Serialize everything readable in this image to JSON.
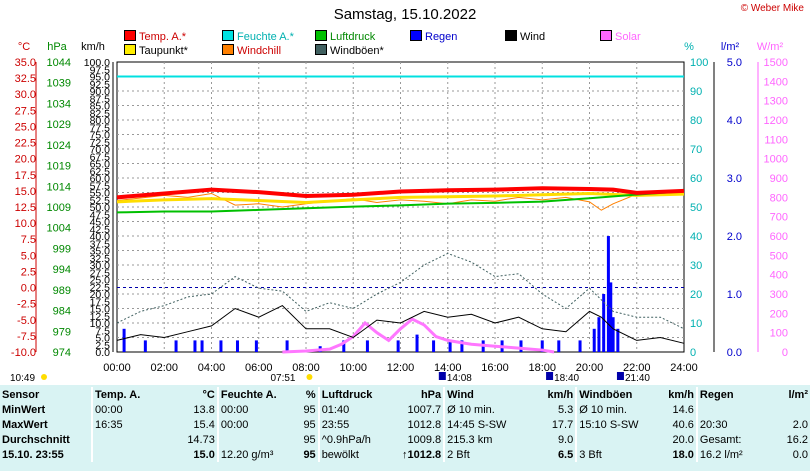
{
  "title": "Samstag, 15.10.2022",
  "copyright": "© Weber Mike",
  "legend": [
    {
      "label": "Temp. A.*",
      "color": "#ff0000"
    },
    {
      "label": "Feuchte A.*",
      "color": "#00e0e0"
    },
    {
      "label": "Luftdruck",
      "color": "#00c000"
    },
    {
      "label": "Regen",
      "color": "#0000ff"
    },
    {
      "label": "Wind",
      "color": "#000000"
    },
    {
      "label": "Solar",
      "color": "#ff66ff"
    },
    {
      "label": "Taupunkt*",
      "color": "#ffee00"
    },
    {
      "label": "Windchill",
      "color": "#ff8000"
    },
    {
      "label": "Windböen*",
      "color": "#406060"
    }
  ],
  "axis_units": {
    "temp": "°C",
    "pressure": "hPa",
    "wind": "km/h",
    "humidity": "%",
    "rain": "l/m²",
    "solar": "W/m²"
  },
  "colors": {
    "temp": "#ff0000",
    "pressure": "#00c000",
    "humidity": "#00d0d0",
    "rain": "#0000ff",
    "solar": "#ff66ff",
    "grid": "#888888"
  },
  "chart_data": {
    "type": "line",
    "x_ticks": [
      "00:00",
      "02:00",
      "04:00",
      "06:00",
      "08:00",
      "10:00",
      "12:00",
      "14:00",
      "16:00",
      "18:00",
      "20:00",
      "22:00",
      "24:00"
    ],
    "x_range_hours": [
      0,
      24
    ],
    "left_axes": {
      "temp_ticks": [
        "35.0",
        "32.5",
        "30.0",
        "27.5",
        "25.0",
        "22.5",
        "20.0",
        "17.5",
        "15.0",
        "12.5",
        "10.0",
        "7.5",
        "5.0",
        "2.5",
        "0.0",
        "-2.5",
        "-5.0",
        "-7.5",
        "-10.0"
      ],
      "pressure_ticks": [
        "1044",
        "1039",
        "1034",
        "1029",
        "1024",
        "1019",
        "1014",
        "1009",
        "1004",
        "999",
        "994",
        "989",
        "984",
        "979",
        "974"
      ],
      "wind_ticks": [
        "100.0",
        "97.5",
        "95.0",
        "92.5",
        "90.0",
        "87.5",
        "85.0",
        "82.5",
        "80.0",
        "77.5",
        "75.0",
        "72.5",
        "70.0",
        "67.5",
        "65.0",
        "62.5",
        "60.0",
        "57.5",
        "55.0",
        "52.5",
        "50.0",
        "47.5",
        "45.0",
        "42.5",
        "40.0",
        "37.5",
        "35.0",
        "32.5",
        "30.0",
        "27.5",
        "25.0",
        "22.5",
        "20.0",
        "17.5",
        "15.0",
        "12.5",
        "10.0",
        "7.5",
        "5.0",
        "2.5",
        "0.0"
      ]
    },
    "right_axes": {
      "humidity_ticks": [
        "100",
        "90",
        "80",
        "70",
        "60",
        "50",
        "40",
        "30",
        "20",
        "10",
        "0"
      ],
      "rain_ticks": [
        "5.0",
        "4.0",
        "3.0",
        "2.0",
        "1.0",
        "0.0"
      ],
      "solar_ticks": [
        "1500",
        "1400",
        "1300",
        "1200",
        "1100",
        "1000",
        "900",
        "800",
        "700",
        "600",
        "500",
        "400",
        "300",
        "200",
        "100",
        "0"
      ]
    },
    "series": [
      {
        "name": "Temp. A.*",
        "unit": "°C",
        "x": [
          0,
          2,
          4,
          6,
          8,
          10,
          12,
          14,
          16,
          18,
          20,
          21,
          22,
          24
        ],
        "y": [
          14.0,
          14.6,
          15.2,
          14.8,
          14.2,
          14.4,
          14.9,
          15.1,
          15.2,
          15.4,
          15.3,
          15.2,
          14.7,
          15.0
        ]
      },
      {
        "name": "Taupunkt*",
        "unit": "°C",
        "x": [
          0,
          2,
          4,
          6,
          8,
          10,
          12,
          14,
          16,
          18,
          20,
          22,
          24
        ],
        "y": [
          13.3,
          13.6,
          13.8,
          13.5,
          13.2,
          13.6,
          14.0,
          14.1,
          14.2,
          14.4,
          14.6,
          14.3,
          14.5
        ]
      },
      {
        "name": "Windchill",
        "unit": "°C",
        "x": [
          0,
          1,
          2,
          3,
          4,
          5,
          6,
          7,
          8,
          9,
          10,
          11,
          12,
          13,
          14,
          15,
          16,
          17,
          18,
          19,
          20,
          20.5,
          21,
          22,
          23,
          24
        ],
        "y": [
          13.5,
          13.9,
          14.3,
          14.0,
          14.6,
          12.8,
          13.0,
          12.5,
          13.0,
          13.4,
          13.8,
          13.2,
          13.6,
          13.4,
          13.0,
          13.6,
          13.4,
          14.0,
          13.6,
          14.0,
          13.3,
          12.0,
          13.0,
          14.5,
          14.6,
          14.8
        ]
      },
      {
        "name": "Feuchte A.*",
        "unit": "%",
        "x": [
          0,
          24
        ],
        "y": [
          95,
          95
        ]
      },
      {
        "name": "Luftdruck",
        "unit": "hPa",
        "x": [
          0,
          2,
          4,
          6,
          8,
          10,
          12,
          14,
          16,
          18,
          20,
          22,
          24
        ],
        "y": [
          1007.7,
          1007.9,
          1007.9,
          1008.3,
          1008.7,
          1009.1,
          1009.4,
          1009.8,
          1010.0,
          1010.3,
          1011.1,
          1012.0,
          1012.8
        ]
      },
      {
        "name": "Wind",
        "unit": "km/h",
        "x": [
          0,
          1,
          2,
          3,
          4,
          5,
          6,
          7,
          8,
          9,
          10,
          11,
          12,
          13,
          14,
          15,
          16,
          17,
          18,
          19,
          20,
          20.5,
          21,
          22,
          23,
          24
        ],
        "y": [
          4,
          6,
          5,
          7,
          9,
          15,
          12,
          16,
          8,
          8,
          5,
          11,
          10,
          14,
          12,
          13,
          10,
          12,
          8,
          7,
          14,
          12,
          8,
          4,
          5,
          3
        ]
      },
      {
        "name": "Windböen*",
        "unit": "km/h",
        "x": [
          0,
          1,
          2,
          3,
          4,
          5,
          6,
          7,
          8,
          9,
          10,
          11,
          12,
          13,
          14,
          15,
          16,
          17,
          18,
          19,
          20,
          20.5,
          21,
          22,
          23,
          24
        ],
        "y": [
          10,
          14,
          16,
          19,
          20,
          26,
          22,
          21,
          14,
          17,
          15,
          20,
          24,
          30,
          34,
          31,
          26,
          27,
          20,
          15,
          22,
          18,
          14,
          12,
          12,
          8
        ]
      },
      {
        "name": "Regen",
        "unit": "l/m²",
        "type": "bar",
        "x": [
          0.3,
          1.2,
          2.5,
          3.3,
          3.6,
          4.4,
          5.1,
          5.9,
          7.2,
          8.6,
          9.6,
          10.6,
          11.9,
          12.7,
          13.4,
          14.1,
          14.6,
          15.5,
          16.3,
          17.1,
          18.0,
          18.7,
          19.6,
          20.2,
          20.4,
          20.6,
          20.8,
          20.9,
          21.0,
          21.2
        ],
        "y": [
          0.4,
          0.2,
          0.2,
          0.2,
          0.2,
          0.2,
          0.2,
          0.2,
          0.2,
          0.1,
          0.2,
          0.2,
          0.2,
          0.3,
          0.2,
          0.2,
          0.2,
          0.2,
          0.2,
          0.2,
          0.2,
          0.2,
          0.2,
          0.4,
          0.6,
          1.0,
          2.0,
          1.2,
          0.6,
          0.4
        ]
      },
      {
        "name": "Solar",
        "unit": "W/m²",
        "x": [
          7.0,
          8.0,
          9.0,
          9.5,
          10.0,
          10.5,
          11.0,
          11.5,
          12.0,
          12.5,
          13.0,
          13.5,
          14.0,
          14.5,
          15.0,
          15.5,
          16.0,
          16.5,
          17.0,
          17.5,
          18.0,
          18.5
        ],
        "y": [
          0,
          5,
          15,
          40,
          80,
          150,
          100,
          60,
          120,
          170,
          140,
          80,
          60,
          50,
          40,
          35,
          30,
          25,
          20,
          15,
          10,
          0
        ]
      }
    ],
    "time_markers": [
      {
        "label": "10:49",
        "x": 10.82
      },
      {
        "label": "07:51",
        "x": 7.85
      },
      {
        "label": "14:08",
        "x": 14.13
      },
      {
        "label": "18:40",
        "x": 18.67
      },
      {
        "label": "21:40",
        "x": 21.67
      }
    ]
  },
  "summary": {
    "headers": [
      "Sensor",
      "Temp. A.",
      "°C",
      "Feuchte A.",
      "%",
      "Luftdruck",
      "hPa",
      "Wind",
      "km/h",
      "Windböen",
      "km/h",
      "Regen",
      "l/m²"
    ],
    "rows": [
      [
        "MinWert",
        "00:00",
        "13.8",
        "00:00",
        "95",
        "01:40",
        "1007.7",
        "Ø 10 min.",
        "5.3",
        "Ø 10 min.",
        "14.6",
        "",
        ""
      ],
      [
        "MaxWert",
        "16:35",
        "15.4",
        "00:00",
        "95",
        "23:55",
        "1012.8",
        "14:45   S-SW",
        "17.7",
        "15:10   S-SW",
        "40.6",
        "20:30",
        "2.0"
      ],
      [
        "Durchschnitt",
        "",
        "14.73",
        "",
        "95",
        "^0.9hPa/h",
        "1009.8",
        "215.3 km",
        "9.0",
        "",
        "20.0",
        "Gesamt:",
        "16.2"
      ],
      [
        "15.10. 23:55",
        "",
        "15.0",
        "12.20 g/m³",
        "95",
        "bewölkt",
        "↑1012.8",
        "2 Bft",
        "6.5",
        "3 Bft",
        "18.0",
        "16.2 l/m²",
        "0.0"
      ]
    ]
  }
}
